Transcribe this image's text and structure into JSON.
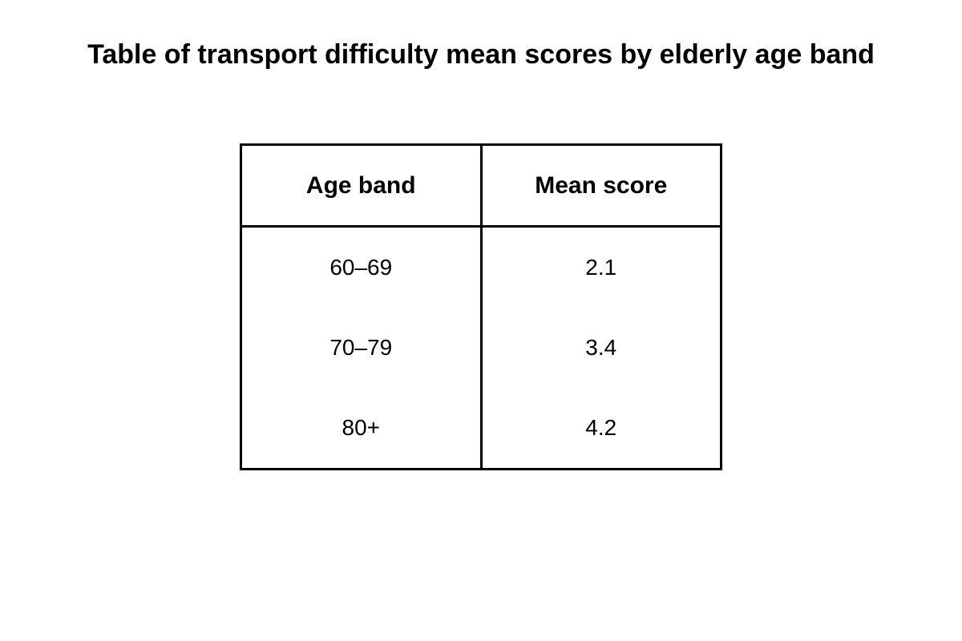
{
  "title": "Table of transport difficulty mean scores by elderly age band",
  "chart_data": {
    "type": "table",
    "title": "Table of transport difficulty mean scores by elderly age band",
    "columns": [
      "Age band",
      "Mean score"
    ],
    "rows": [
      [
        "60–69",
        "2.1"
      ],
      [
        "70–79",
        "3.4"
      ],
      [
        "80+",
        "4.2"
      ]
    ],
    "categories": [
      "60–69",
      "70–79",
      "80+"
    ],
    "values": [
      2.1,
      3.4,
      4.2
    ]
  }
}
